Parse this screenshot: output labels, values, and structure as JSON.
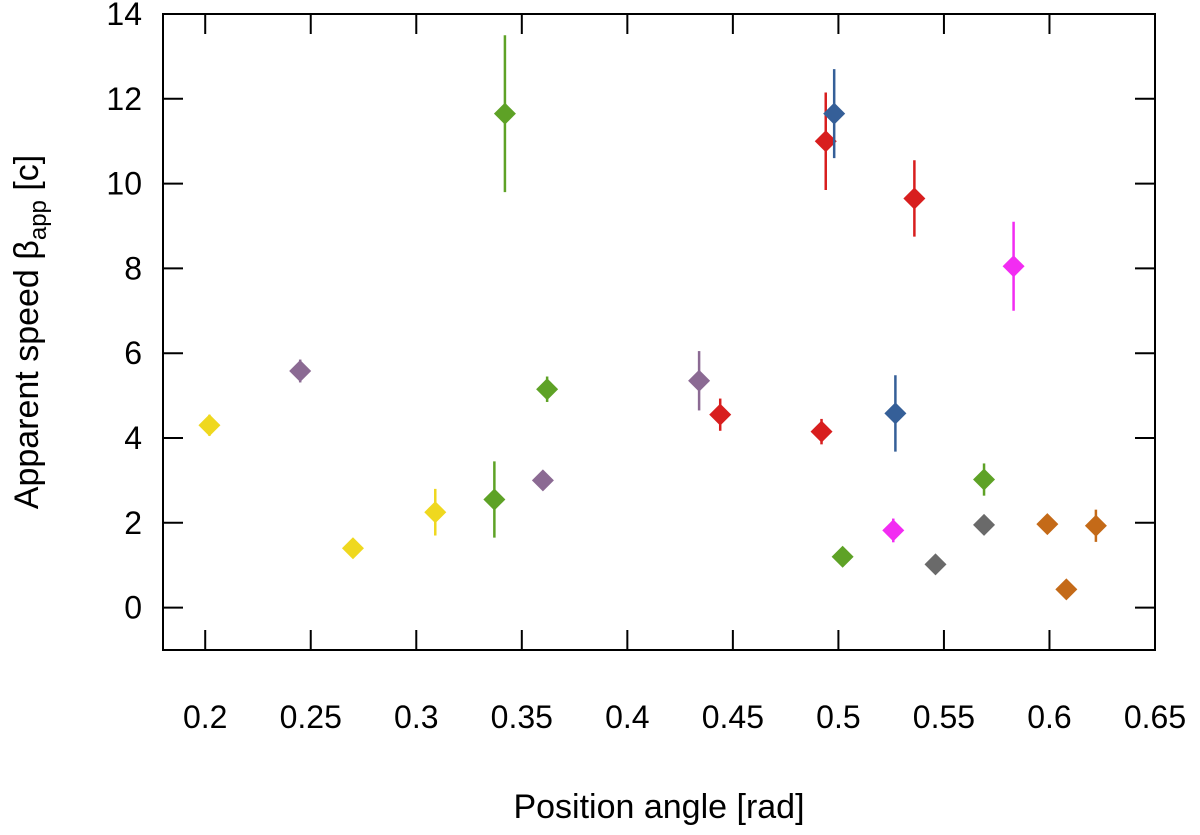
{
  "chart_data": {
    "type": "scatter",
    "title": "",
    "xlabel": "Position angle [rad]",
    "ylabel_main": "Apparent speed β",
    "ylabel_sub": "app",
    "ylabel_unit": " [c]",
    "xlim": [
      0.18,
      0.65
    ],
    "ylim": [
      -1,
      14
    ],
    "xticks": [
      0.2,
      0.25,
      0.3,
      0.35,
      0.4,
      0.45,
      0.5,
      0.55,
      0.6,
      0.65
    ],
    "xtick_labels": [
      "0.2",
      "0.25",
      "0.3",
      "0.35",
      "0.4",
      "0.45",
      "0.5",
      "0.55",
      "0.6",
      "0.65"
    ],
    "yticks": [
      0,
      2,
      4,
      6,
      8,
      10,
      12,
      14
    ],
    "ytick_labels": [
      "0",
      "2",
      "4",
      "6",
      "8",
      "10",
      "12",
      "14"
    ],
    "grid": false,
    "marker": "diamond",
    "series": [
      {
        "name": "yellow",
        "color": "#efd81f",
        "points": [
          {
            "x": 0.202,
            "y": 4.3,
            "err": 0.25
          },
          {
            "x": 0.27,
            "y": 1.4,
            "err": 0.0
          },
          {
            "x": 0.309,
            "y": 2.25,
            "err": 0.55
          }
        ]
      },
      {
        "name": "purple",
        "color": "#8b6a93",
        "points": [
          {
            "x": 0.245,
            "y": 5.58,
            "err": 0.27
          },
          {
            "x": 0.36,
            "y": 3.0,
            "err": 0.0
          },
          {
            "x": 0.434,
            "y": 5.35,
            "err": 0.7
          }
        ]
      },
      {
        "name": "green",
        "color": "#5ea226",
        "points": [
          {
            "x": 0.337,
            "y": 2.55,
            "err": 0.9
          },
          {
            "x": 0.342,
            "y": 11.65,
            "err": 1.85
          },
          {
            "x": 0.362,
            "y": 5.15,
            "err": 0.3
          },
          {
            "x": 0.502,
            "y": 1.2,
            "err": 0.0
          },
          {
            "x": 0.569,
            "y": 3.02,
            "err": 0.38
          }
        ]
      },
      {
        "name": "red",
        "color": "#d81e1e",
        "points": [
          {
            "x": 0.444,
            "y": 4.55,
            "err": 0.38
          },
          {
            "x": 0.492,
            "y": 4.15,
            "err": 0.3
          },
          {
            "x": 0.494,
            "y": 11.0,
            "err": 1.15
          },
          {
            "x": 0.536,
            "y": 9.65,
            "err": 0.9
          }
        ]
      },
      {
        "name": "blue",
        "color": "#355f98",
        "points": [
          {
            "x": 0.498,
            "y": 11.65,
            "err": 1.05
          },
          {
            "x": 0.527,
            "y": 4.58,
            "err": 0.9
          }
        ]
      },
      {
        "name": "magenta",
        "color": "#f22cf2",
        "points": [
          {
            "x": 0.526,
            "y": 1.82,
            "err": 0.28
          },
          {
            "x": 0.583,
            "y": 8.05,
            "err": 1.05
          }
        ]
      },
      {
        "name": "gray",
        "color": "#6a6a6a",
        "points": [
          {
            "x": 0.546,
            "y": 1.02,
            "err": 0.0
          },
          {
            "x": 0.569,
            "y": 1.95,
            "err": 0.0
          }
        ]
      },
      {
        "name": "orange",
        "color": "#c46a18",
        "points": [
          {
            "x": 0.599,
            "y": 1.97,
            "err": 0.0
          },
          {
            "x": 0.608,
            "y": 0.43,
            "err": 0.0
          },
          {
            "x": 0.622,
            "y": 1.93,
            "err": 0.38
          }
        ]
      }
    ]
  }
}
